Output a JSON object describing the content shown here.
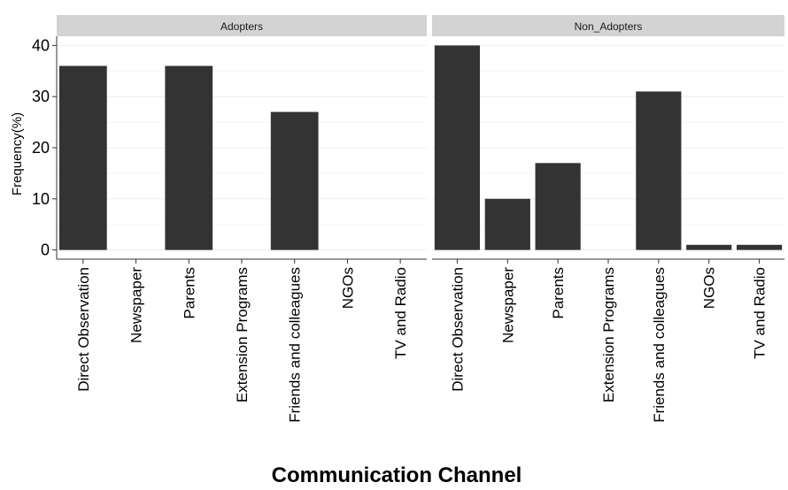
{
  "chart_data": {
    "type": "bar",
    "xlabel": "Communication Channel",
    "ylabel": "Frequency(%)",
    "ylim": [
      -1.8,
      41.8
    ],
    "yticks": [
      0,
      10,
      20,
      30,
      40
    ],
    "categories": [
      "Direct Observation",
      "Newspaper",
      "Parents",
      "Extension Programs",
      "Friends and colleagues",
      "NGOs",
      "TV and Radio"
    ],
    "bar_color": "#333333",
    "strip_color": "#d3d3d3",
    "grid": true,
    "panels": [
      {
        "name": "Adopters",
        "values": [
          36,
          0,
          36,
          0,
          27,
          0,
          0
        ]
      },
      {
        "name": "Non_Adopters",
        "values": [
          40,
          10,
          17,
          0,
          31,
          1,
          1
        ]
      }
    ]
  }
}
